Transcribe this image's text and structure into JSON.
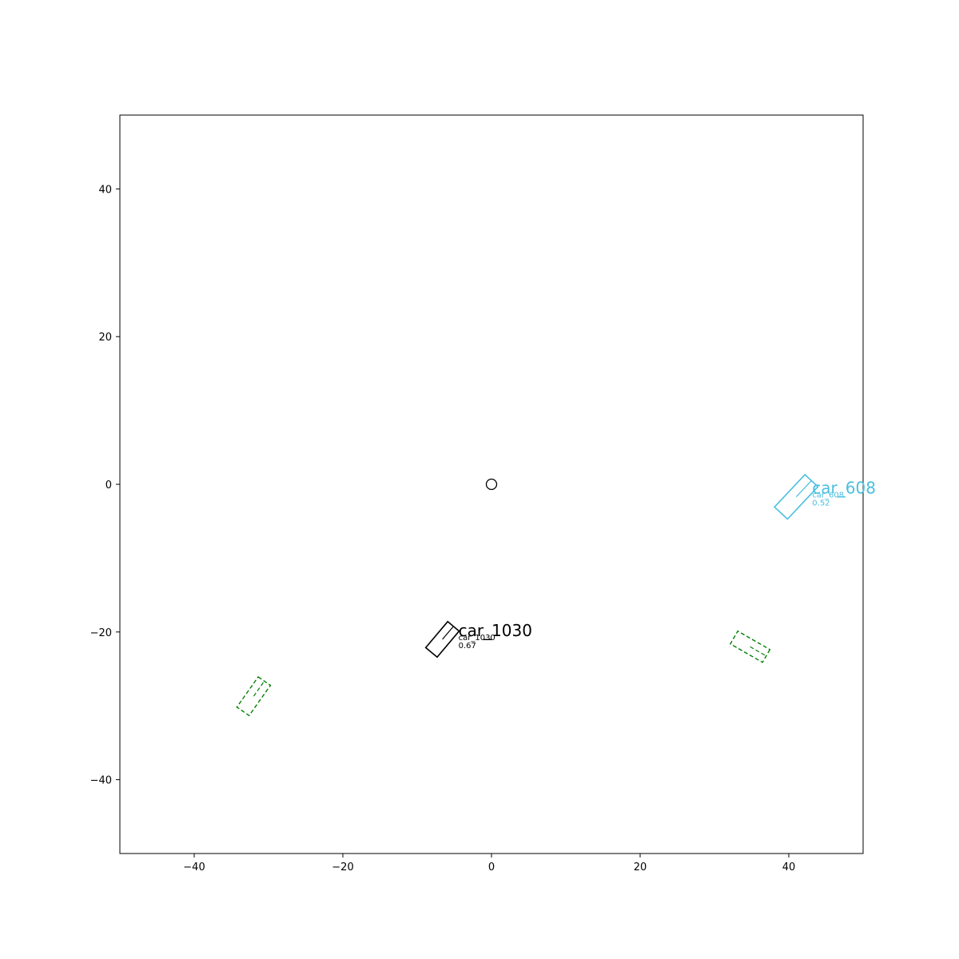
{
  "chart_data": {
    "type": "scatter",
    "title": "",
    "xlabel": "",
    "ylabel": "",
    "xlim": [
      -50,
      50
    ],
    "ylim": [
      -50,
      50
    ],
    "grid": false,
    "x_ticks": [
      -40,
      -20,
      0,
      20,
      40
    ],
    "y_ticks": [
      -40,
      -20,
      0,
      20,
      40
    ],
    "tick_labels_x": [
      "−40",
      "−20",
      "0",
      "20",
      "40"
    ],
    "tick_labels_y": [
      "−40",
      "−20",
      "0",
      "20",
      "40"
    ],
    "ego": {
      "x": 0,
      "y": 0,
      "marker": "circle"
    },
    "predicted_boxes": [
      {
        "name": "car_1030",
        "label": "car_1030",
        "score_text": "0.67",
        "small_id_text": "car_1030",
        "color": "#000000",
        "center": [
          -6.6,
          -21.0
        ],
        "length": 4.6,
        "width": 2.0,
        "yaw_deg": 50
      },
      {
        "name": "car_608",
        "label": "car_608",
        "score_text": "0.52",
        "small_id_text": "car_608",
        "color": "#4bbfe0",
        "center": [
          41.0,
          -1.7
        ],
        "length": 6.0,
        "width": 2.4,
        "yaw_deg": 47
      }
    ],
    "ground_truth_boxes": [
      {
        "center": [
          -32.0,
          -28.7
        ],
        "length": 5.0,
        "width": 2.0,
        "yaw_deg": 55,
        "color": "#008000",
        "style": "dashed"
      },
      {
        "center": [
          34.8,
          -22.0
        ],
        "length": 5.0,
        "width": 2.0,
        "yaw_deg": -30,
        "color": "#008000",
        "style": "dashed"
      }
    ]
  }
}
